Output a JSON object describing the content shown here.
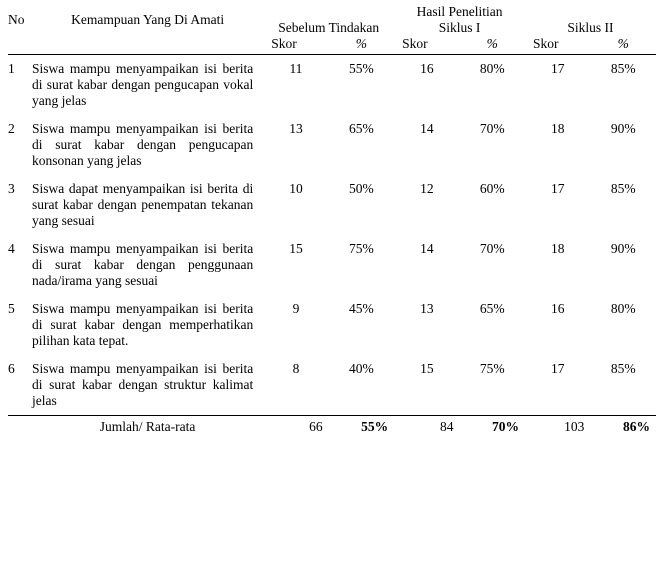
{
  "header": {
    "no": "No",
    "ability": "Kemampuan Yang Di Amati",
    "result_title": "Hasil Penelitian",
    "col_before": "Sebelum Tindakan",
    "col_s1": "Siklus I",
    "col_s2": "Siklus II",
    "sub_score": "Skor",
    "sub_pct": "%"
  },
  "rows": [
    {
      "no": "1",
      "desc": "Siswa mampu menyampaikan isi berita di surat kabar dengan pengucapan vokal yang jelas",
      "b_skor": "11",
      "b_pct": "55%",
      "s1_skor": "16",
      "s1_pct": "80%",
      "s2_skor": "17",
      "s2_pct": "85%"
    },
    {
      "no": "2",
      "desc": "Siswa mampu menyampaikan isi berita di surat kabar dengan pengucapan konsonan yang jelas",
      "b_skor": "13",
      "b_pct": "65%",
      "s1_skor": "14",
      "s1_pct": "70%",
      "s2_skor": "18",
      "s2_pct": "90%"
    },
    {
      "no": "3",
      "desc": "Siswa dapat menyampaikan isi berita di surat kabar dengan penempatan tekanan yang sesuai",
      "b_skor": "10",
      "b_pct": "50%",
      "s1_skor": "12",
      "s1_pct": "60%",
      "s2_skor": "17",
      "s2_pct": "85%"
    },
    {
      "no": "4",
      "desc": "Siswa mampu menyampaikan isi berita di surat kabar dengan penggunaan nada/irama yang sesuai",
      "b_skor": "15",
      "b_pct": "75%",
      "s1_skor": "14",
      "s1_pct": "70%",
      "s2_skor": "18",
      "s2_pct": "90%"
    },
    {
      "no": "5",
      "desc": "Siswa mampu menyampaikan isi berita di surat kabar dengan memperhatikan pilihan kata tepat.",
      "b_skor": "9",
      "b_pct": "45%",
      "s1_skor": "13",
      "s1_pct": "65%",
      "s2_skor": "16",
      "s2_pct": "80%"
    },
    {
      "no": "6",
      "desc": "Siswa mampu menyampaikan isi berita di surat kabar dengan struktur kalimat jelas",
      "b_skor": "8",
      "b_pct": "40%",
      "s1_skor": "15",
      "s1_pct": "75%",
      "s2_skor": "17",
      "s2_pct": "85%"
    }
  ],
  "footer": {
    "label": "Jumlah/ Rata-rata",
    "b_skor": "66",
    "b_pct": "55%",
    "s1_skor": "84",
    "s1_pct": "70%",
    "s2_skor": "103",
    "s2_pct": "86%"
  }
}
